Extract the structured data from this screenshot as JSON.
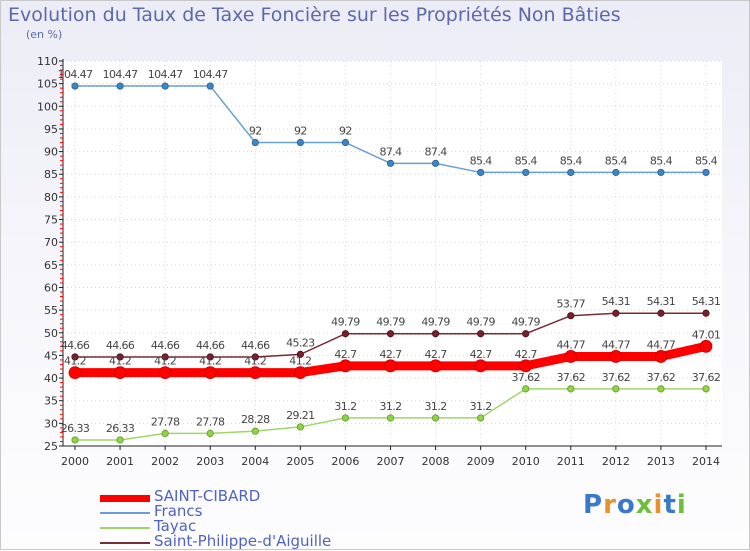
{
  "chart_data": {
    "type": "line",
    "title": "Evolution du Taux de Taxe Foncière sur les Propriétés Non Bâties",
    "ylabel": "(en %)",
    "xlabel": "",
    "ylim": [
      25,
      110
    ],
    "yticks": [
      25,
      30,
      35,
      40,
      45,
      50,
      55,
      60,
      65,
      70,
      75,
      80,
      85,
      90,
      95,
      100,
      105,
      110
    ],
    "categories": [
      "2000",
      "2001",
      "2002",
      "2003",
      "2004",
      "2005",
      "2006",
      "2007",
      "2008",
      "2009",
      "2010",
      "2011",
      "2012",
      "2013",
      "2014"
    ],
    "series": [
      {
        "name": "SAINT-CIBARD",
        "color": "#ff0000",
        "values": [
          41.2,
          41.2,
          41.2,
          41.2,
          41.2,
          41.2,
          42.7,
          42.7,
          42.7,
          42.7,
          42.7,
          44.77,
          44.77,
          44.77,
          47.01
        ],
        "labels": [
          "41.2",
          "41.2",
          "41.2",
          "41.2",
          "41.2",
          "41.2",
          "42.7",
          "42.7",
          "42.7",
          "42.7",
          "42.7",
          "44.77",
          "44.77",
          "44.77",
          "47.01"
        ]
      },
      {
        "name": "Francs",
        "color": "#6a9fd4",
        "values": [
          104.47,
          104.47,
          104.47,
          104.47,
          92,
          92,
          92,
          87.4,
          87.4,
          85.4,
          85.4,
          85.4,
          85.4,
          85.4,
          85.4
        ],
        "labels": [
          "104.47",
          "104.47",
          "104.47",
          "104.47",
          "92",
          "92",
          "92",
          "87.4",
          "87.4",
          "85.4",
          "85.4",
          "85.4",
          "85.4",
          "85.4",
          "85.4"
        ]
      },
      {
        "name": "Tayac",
        "color": "#9fd66a",
        "values": [
          26.33,
          26.33,
          27.78,
          27.78,
          28.28,
          29.21,
          31.2,
          31.2,
          31.2,
          31.2,
          37.62,
          37.62,
          37.62,
          37.62,
          37.62
        ],
        "labels": [
          "26.33",
          "26.33",
          "27.78",
          "27.78",
          "28.28",
          "29.21",
          "31.2",
          "31.2",
          "31.2",
          "31.2",
          "37.62",
          "37.62",
          "37.62",
          "37.62",
          "37.62"
        ]
      },
      {
        "name": "Saint-Philippe-d'Aiguille",
        "color": "#7a2a35",
        "values": [
          44.66,
          44.66,
          44.66,
          44.66,
          44.66,
          45.23,
          49.79,
          49.79,
          49.79,
          49.79,
          49.79,
          53.77,
          54.31,
          54.31,
          54.31
        ],
        "labels": [
          "44.66",
          "44.66",
          "44.66",
          "44.66",
          "44.66",
          "45.23",
          "49.79",
          "49.79",
          "49.79",
          "49.79",
          "49.79",
          "53.77",
          "54.31",
          "54.31",
          "54.31"
        ]
      }
    ],
    "legend_position": "bottom-left",
    "grid": true
  },
  "branding": {
    "logo_text": "Proxiti"
  }
}
